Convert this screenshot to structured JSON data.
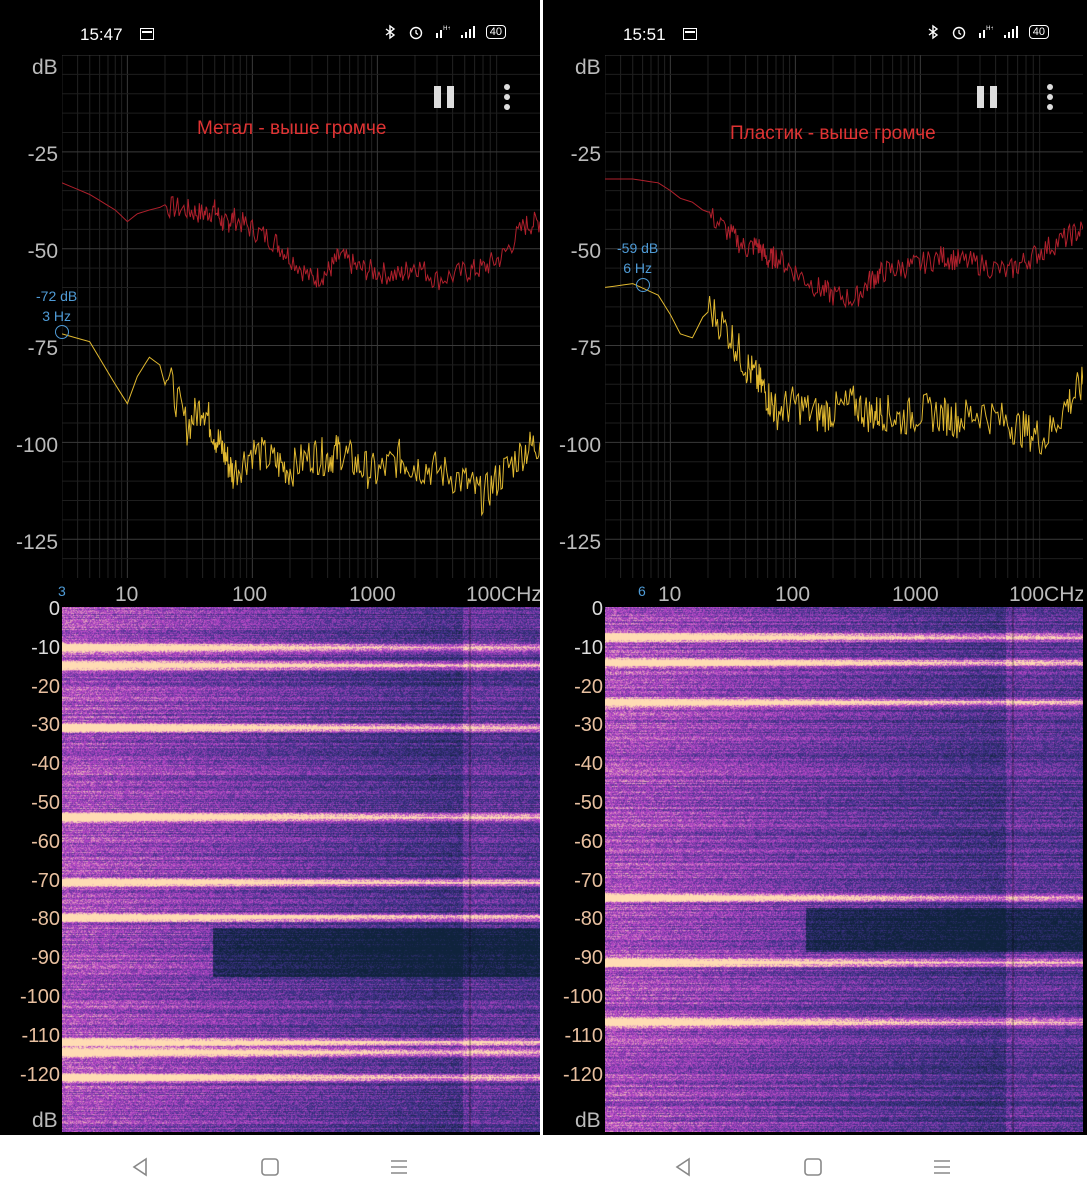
{
  "panels": [
    {
      "time": "15:47",
      "battery": "40",
      "title": "Метал - выше громче",
      "cursor": {
        "db": "-72 dB",
        "hz": "3 Hz"
      },
      "x_min_label": "3",
      "icons": [
        "calendar-icon",
        "bluetooth-icon",
        "alarm-icon",
        "network-icon",
        "signal-icon",
        "battery-icon",
        "pause-icon",
        "menu-icon"
      ]
    },
    {
      "time": "15:51",
      "battery": "40",
      "title": "Пластик - выше громче",
      "cursor": {
        "db": "-59 dB",
        "hz": "6 Hz"
      },
      "x_min_label": "6",
      "icons": [
        "calendar-icon",
        "bluetooth-icon",
        "alarm-icon",
        "network-icon",
        "signal-icon",
        "battery-icon",
        "pause-icon",
        "menu-icon"
      ]
    }
  ],
  "spectrum_axis": {
    "y_unit": "dB",
    "y_ticks": [
      "-25",
      "-50",
      "-75",
      "-100",
      "-125"
    ],
    "x_ticks": [
      "10",
      "100",
      "1000",
      "100CHz"
    ]
  },
  "spectrogram_axis": {
    "y_ticks": [
      "0",
      "-10",
      "-20",
      "-30",
      "-40",
      "-50",
      "-60",
      "-70",
      "-80",
      "-90",
      "-100",
      "-110",
      "-120"
    ],
    "y_unit": "dB"
  },
  "chart_data": [
    {
      "type": "line",
      "xscale": "log",
      "xlabel": "Hz",
      "ylabel": "dB",
      "xlim": [
        3,
        20000
      ],
      "ylim": [
        -135,
        0
      ],
      "series": [
        {
          "color": "#b0202c",
          "x": [
            3,
            5,
            8,
            10,
            12,
            15,
            20,
            30,
            40,
            50,
            60,
            70,
            100,
            150,
            200,
            300,
            400,
            500,
            700,
            1000,
            1500,
            2000,
            3000,
            5000,
            7000,
            10000,
            15000,
            20000
          ],
          "y": [
            -33,
            -36,
            -40,
            -43,
            -41,
            -40,
            -39,
            -40,
            -41,
            -40,
            -44,
            -42,
            -45,
            -48,
            -52,
            -58,
            -56,
            -52,
            -55,
            -56,
            -57,
            -54,
            -58,
            -56,
            -55,
            -52,
            -44,
            -43
          ]
        },
        {
          "color": "#e0b830",
          "x": [
            3,
            5,
            8,
            10,
            12,
            15,
            20,
            30,
            40,
            50,
            60,
            70,
            100,
            150,
            200,
            300,
            400,
            500,
            700,
            1000,
            1500,
            2000,
            3000,
            5000,
            7000,
            10000,
            15000,
            20000
          ],
          "y": [
            -72,
            -74,
            -85,
            -90,
            -83,
            -78,
            -81,
            -96,
            -90,
            -98,
            -103,
            -108,
            -102,
            -105,
            -107,
            -103,
            -104,
            -102,
            -106,
            -108,
            -104,
            -106,
            -107,
            -110,
            -114,
            -108,
            -102,
            -100
          ]
        }
      ]
    },
    {
      "type": "line",
      "xscale": "log",
      "xlabel": "Hz",
      "ylabel": "dB",
      "xlim": [
        3,
        20000
      ],
      "ylim": [
        -135,
        0
      ],
      "series": [
        {
          "color": "#b0202c",
          "x": [
            3,
            5,
            8,
            10,
            12,
            15,
            20,
            30,
            40,
            50,
            60,
            70,
            100,
            150,
            200,
            300,
            400,
            500,
            700,
            1000,
            1500,
            2000,
            3000,
            5000,
            7000,
            10000,
            15000,
            20000
          ],
          "y": [
            -32,
            -32,
            -33,
            -35,
            -37,
            -38,
            -41,
            -46,
            -50,
            -49,
            -53,
            -52,
            -56,
            -60,
            -62,
            -63,
            -58,
            -56,
            -55,
            -54,
            -52,
            -53,
            -54,
            -56,
            -53,
            -50,
            -47,
            -45
          ]
        },
        {
          "color": "#e0b830",
          "x": [
            3,
            5,
            8,
            10,
            12,
            15,
            20,
            30,
            40,
            50,
            60,
            70,
            100,
            150,
            200,
            300,
            400,
            500,
            700,
            1000,
            1500,
            2000,
            3000,
            5000,
            7000,
            10000,
            15000,
            20000
          ],
          "y": [
            -60,
            -59,
            -62,
            -67,
            -72,
            -73,
            -65,
            -72,
            -80,
            -84,
            -88,
            -92,
            -90,
            -93,
            -92,
            -90,
            -93,
            -92,
            -94,
            -92,
            -93,
            -94,
            -92,
            -95,
            -97,
            -99,
            -90,
            -85
          ]
        }
      ]
    }
  ]
}
